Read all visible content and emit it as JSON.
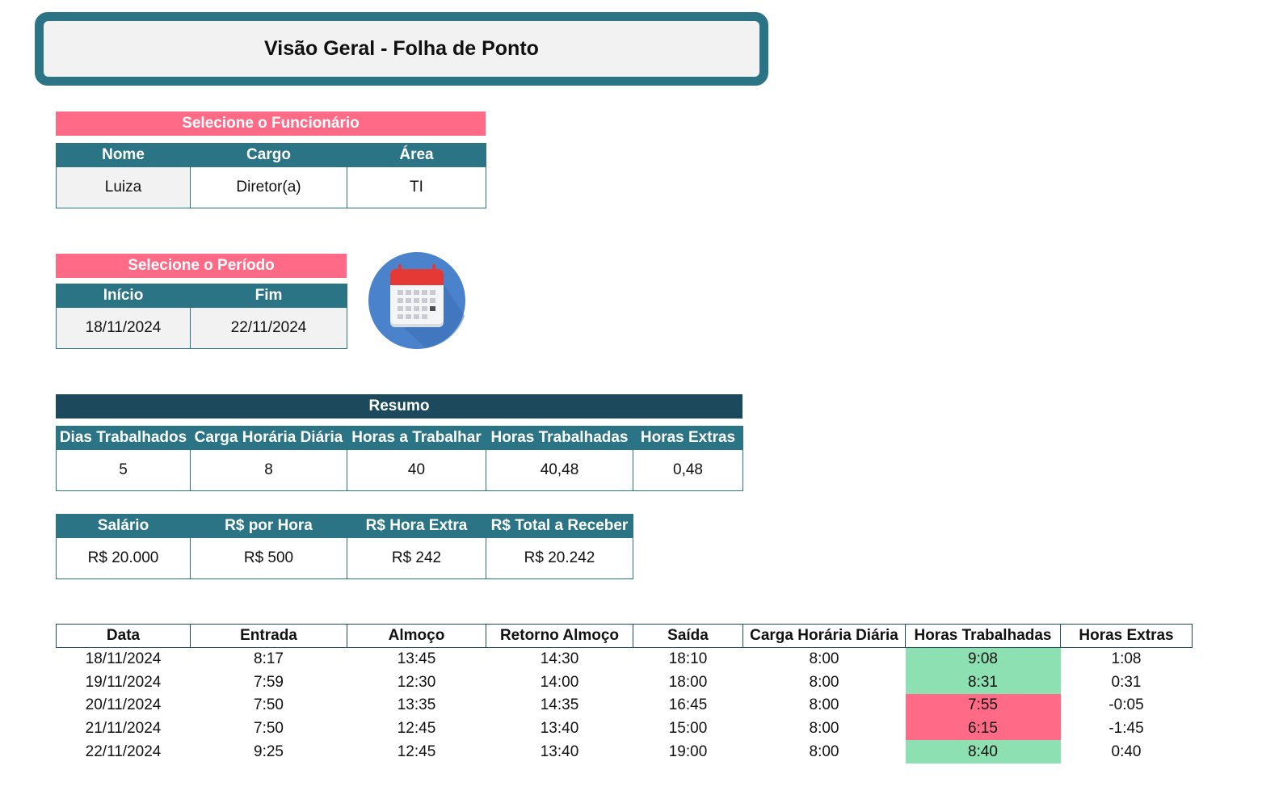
{
  "title": "Visão Geral - Folha de Ponto",
  "employee": {
    "select_label": "Selecione o Funcionário",
    "headers": [
      "Nome",
      "Cargo",
      "Área"
    ],
    "values": [
      "Luiza",
      "Diretor(a)",
      "TI"
    ]
  },
  "period": {
    "select_label": "Selecione o Período",
    "headers": [
      "Início",
      "Fim"
    ],
    "values": [
      "18/11/2024",
      "22/11/2024"
    ],
    "icon": "calendar-icon"
  },
  "summary": {
    "title": "Resumo",
    "headers": [
      "Dias Trabalhados",
      "Carga Horária Diária",
      "Horas a Trabalhar",
      "Horas Trabalhadas",
      "Horas Extras"
    ],
    "values": [
      "5",
      "8",
      "40",
      "40,48",
      "0,48"
    ]
  },
  "pay": {
    "headers": [
      "Salário",
      "R$ por Hora",
      "R$ Hora Extra",
      "R$ Total a Receber"
    ],
    "values": [
      "R$ 20.000",
      "R$ 500",
      "R$ 242",
      "R$ 20.242"
    ]
  },
  "log": {
    "headers": [
      "Data",
      "Entrada",
      "Almoço",
      "Retorno Almoço",
      "Saída",
      "Carga Horária Diária",
      "Horas Trabalhadas",
      "Horas Extras"
    ],
    "rows": [
      {
        "data": "18/11/2024",
        "entrada": "8:17",
        "almoco": "13:45",
        "retorno": "14:30",
        "saida": "18:10",
        "carga": "8:00",
        "trabalhadas": "9:08",
        "extras": "1:08",
        "status": "good"
      },
      {
        "data": "19/11/2024",
        "entrada": "7:59",
        "almoco": "12:30",
        "retorno": "14:00",
        "saida": "18:00",
        "carga": "8:00",
        "trabalhadas": "8:31",
        "extras": "0:31",
        "status": "good"
      },
      {
        "data": "20/11/2024",
        "entrada": "7:50",
        "almoco": "13:35",
        "retorno": "14:35",
        "saida": "16:45",
        "carga": "8:00",
        "trabalhadas": "7:55",
        "extras": "-0:05",
        "status": "bad"
      },
      {
        "data": "21/11/2024",
        "entrada": "7:50",
        "almoco": "12:45",
        "retorno": "13:40",
        "saida": "15:00",
        "carga": "8:00",
        "trabalhadas": "6:15",
        "extras": "-1:45",
        "status": "bad"
      },
      {
        "data": "22/11/2024",
        "entrada": "9:25",
        "almoco": "12:45",
        "retorno": "13:40",
        "saida": "19:00",
        "carga": "8:00",
        "trabalhadas": "8:40",
        "extras": "0:40",
        "status": "good"
      }
    ]
  },
  "colors": {
    "teal": "#2a7485",
    "dark_teal": "#1c4a5c",
    "pink": "#ff6b86",
    "green": "#8ce0b2"
  }
}
